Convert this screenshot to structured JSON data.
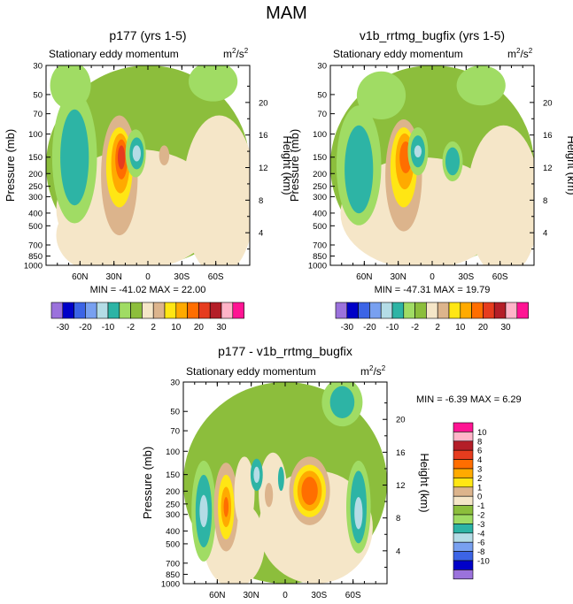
{
  "title": "MAM",
  "colors": {
    "neg10": "#9b72dc",
    "neg8": "#0000c8",
    "neg6": "#3c64e6",
    "neg4": "#78a0f0",
    "neg3": "#b4dce6",
    "neg2": "#2db4a5",
    "neg1": "#a0dc64",
    "zero_neg": "#8cbe3c",
    "zero_pos": "#f5e6c8",
    "pos1": "#dcb48c",
    "pos2": "#ffe614",
    "pos3": "#ffaa00",
    "pos4": "#ff6e00",
    "pos6": "#e63c1e",
    "pos8": "#b41e28",
    "pos10": "#ffb4c8",
    "pos12": "#ff1493"
  },
  "chart_data": [
    {
      "type": "contour",
      "panel": "top-left",
      "title": "p177 (yrs 1-5)",
      "subtitle": "Stationary eddy momentum",
      "units": "m²/s²",
      "units_base": "m",
      "units_sup1": "2",
      "units_mid": "/s",
      "units_sup2": "2",
      "ylabel": "Pressure (mb)",
      "y2label": "Height (km)",
      "x_ticks": [
        "60N",
        "30N",
        "0",
        "30S",
        "60S"
      ],
      "x_tick_lat": [
        60,
        30,
        0,
        -30,
        -60
      ],
      "xlim": [
        90,
        -90
      ],
      "y_ticks": [
        "30",
        "50",
        "70",
        "100",
        "150",
        "200",
        "250",
        "300",
        "400",
        "500",
        "700",
        "850",
        "1000"
      ],
      "y_tick_values": [
        30,
        50,
        70,
        100,
        150,
        200,
        250,
        300,
        400,
        500,
        700,
        850,
        1000
      ],
      "ylim": [
        1000,
        30
      ],
      "height_ticks": [
        "4",
        "8",
        "12",
        "16",
        "20"
      ],
      "height_values": [
        4,
        8,
        12,
        16,
        20
      ],
      "min": -41.02,
      "max": 22.0,
      "stats_text": "MIN = -41.02  MAX =  22.00"
    },
    {
      "type": "contour",
      "panel": "top-right",
      "title": "v1b_rrtmg_bugfix (yrs 1-5)",
      "subtitle": "Stationary eddy momentum",
      "units": "m²/s²",
      "units_base": "m",
      "units_sup1": "2",
      "units_mid": "/s",
      "units_sup2": "2",
      "ylabel": "Pressure (mb)",
      "y2label": "Height (km)",
      "x_ticks": [
        "60N",
        "30N",
        "0",
        "30S",
        "60S"
      ],
      "x_tick_lat": [
        60,
        30,
        0,
        -30,
        -60
      ],
      "xlim": [
        90,
        -90
      ],
      "y_ticks": [
        "30",
        "50",
        "70",
        "100",
        "150",
        "200",
        "250",
        "300",
        "400",
        "500",
        "700",
        "850",
        "1000"
      ],
      "y_tick_values": [
        30,
        50,
        70,
        100,
        150,
        200,
        250,
        300,
        400,
        500,
        700,
        850,
        1000
      ],
      "ylim": [
        1000,
        30
      ],
      "height_ticks": [
        "4",
        "8",
        "12",
        "16",
        "20"
      ],
      "height_values": [
        4,
        8,
        12,
        16,
        20
      ],
      "min": -47.31,
      "max": 19.79,
      "stats_text": "MIN = -47.31  MAX =  19.79"
    },
    {
      "type": "contour",
      "panel": "bottom",
      "title": "p177 - v1b_rrtmg_bugfix",
      "subtitle": "Stationary eddy momentum",
      "units": "m²/s²",
      "units_base": "m",
      "units_sup1": "2",
      "units_mid": "/s",
      "units_sup2": "2",
      "ylabel": "Pressure (mb)",
      "y2label": "Height (km)",
      "x_ticks": [
        "60N",
        "30N",
        "0",
        "30S",
        "60S"
      ],
      "x_tick_lat": [
        60,
        30,
        0,
        -30,
        -60
      ],
      "xlim": [
        90,
        -90
      ],
      "y_ticks": [
        "30",
        "50",
        "70",
        "100",
        "150",
        "200",
        "250",
        "300",
        "400",
        "500",
        "700",
        "850",
        "1000"
      ],
      "y_tick_values": [
        30,
        50,
        70,
        100,
        150,
        200,
        250,
        300,
        400,
        500,
        700,
        850,
        1000
      ],
      "ylim": [
        1000,
        30
      ],
      "height_ticks": [
        "4",
        "8",
        "12",
        "16",
        "20"
      ],
      "height_values": [
        4,
        8,
        12,
        16,
        20
      ],
      "min": -6.39,
      "max": 6.29,
      "stats_text": "MIN =  -6.39  MAX =   6.29"
    }
  ],
  "colorbar_top": {
    "orientation": "horizontal",
    "labels": [
      "-30",
      "-20",
      "-10",
      "-2",
      "2",
      "10",
      "20",
      "30"
    ],
    "label_after_box": [
      1,
      3,
      5,
      7,
      9,
      11,
      13,
      15
    ],
    "color_keys": [
      "neg10",
      "neg8",
      "neg6",
      "neg4",
      "neg3",
      "neg2",
      "neg1",
      "zero_neg",
      "zero_pos",
      "pos1",
      "pos2",
      "pos3",
      "pos4",
      "pos6",
      "pos8",
      "pos10",
      "pos12"
    ]
  },
  "colorbar_diff": {
    "orientation": "vertical",
    "labels": [
      "10",
      "8",
      "6",
      "4",
      "3",
      "2",
      "1",
      "0",
      "-1",
      "-2",
      "-3",
      "-4",
      "-6",
      "-8",
      "-10"
    ],
    "color_keys": [
      "pos12",
      "pos10",
      "pos8",
      "pos6",
      "pos4",
      "pos3",
      "pos2",
      "pos1",
      "zero_pos",
      "zero_neg",
      "neg1",
      "neg2",
      "neg3",
      "neg4",
      "neg6",
      "neg8",
      "neg10"
    ]
  }
}
